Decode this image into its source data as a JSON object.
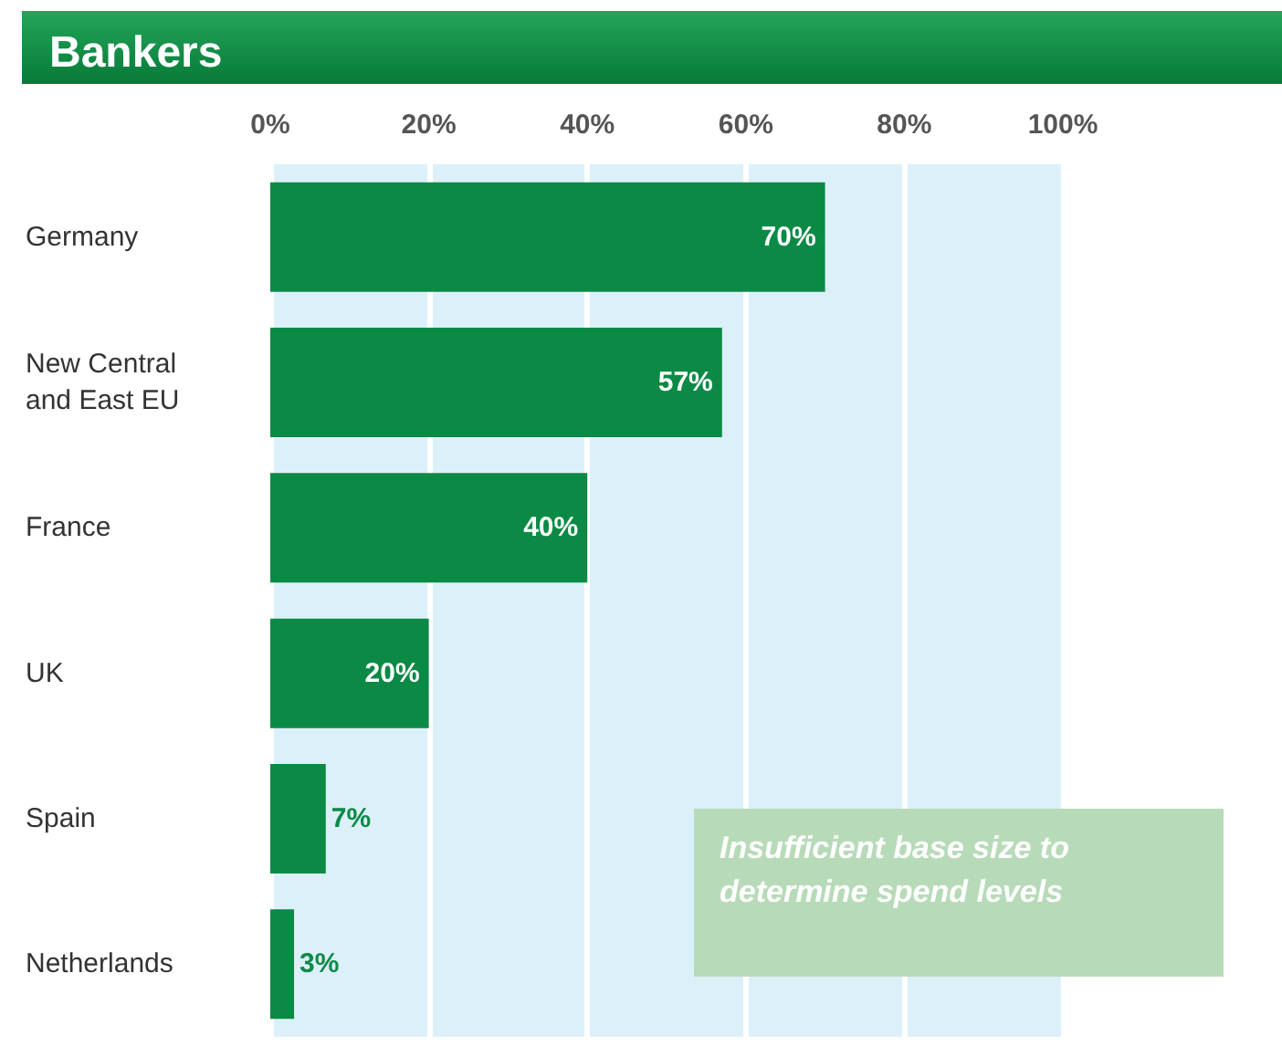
{
  "chart_data": {
    "type": "bar",
    "orientation": "horizontal",
    "title": "Bankers",
    "categories": [
      "Germany",
      "New Central and East EU",
      "France",
      "UK",
      "Spain",
      "Netherlands"
    ],
    "values": [
      70,
      57,
      40,
      20,
      7,
      3
    ],
    "value_labels": [
      "70%",
      "57%",
      "40%",
      "20%",
      "7%",
      "3%"
    ],
    "color": "#0b8a45",
    "xlim": [
      0,
      100
    ],
    "xticks": [
      {
        "value": 0,
        "label": "0%"
      },
      {
        "value": 20,
        "label": "20%"
      },
      {
        "value": 40,
        "label": "40%"
      },
      {
        "value": 60,
        "label": "60%"
      },
      {
        "value": 80,
        "label": "80%"
      },
      {
        "value": 100,
        "label": "100%"
      }
    ],
    "grid": "x",
    "annotations": [
      "Insufficient base size to determine spend levels"
    ]
  }
}
